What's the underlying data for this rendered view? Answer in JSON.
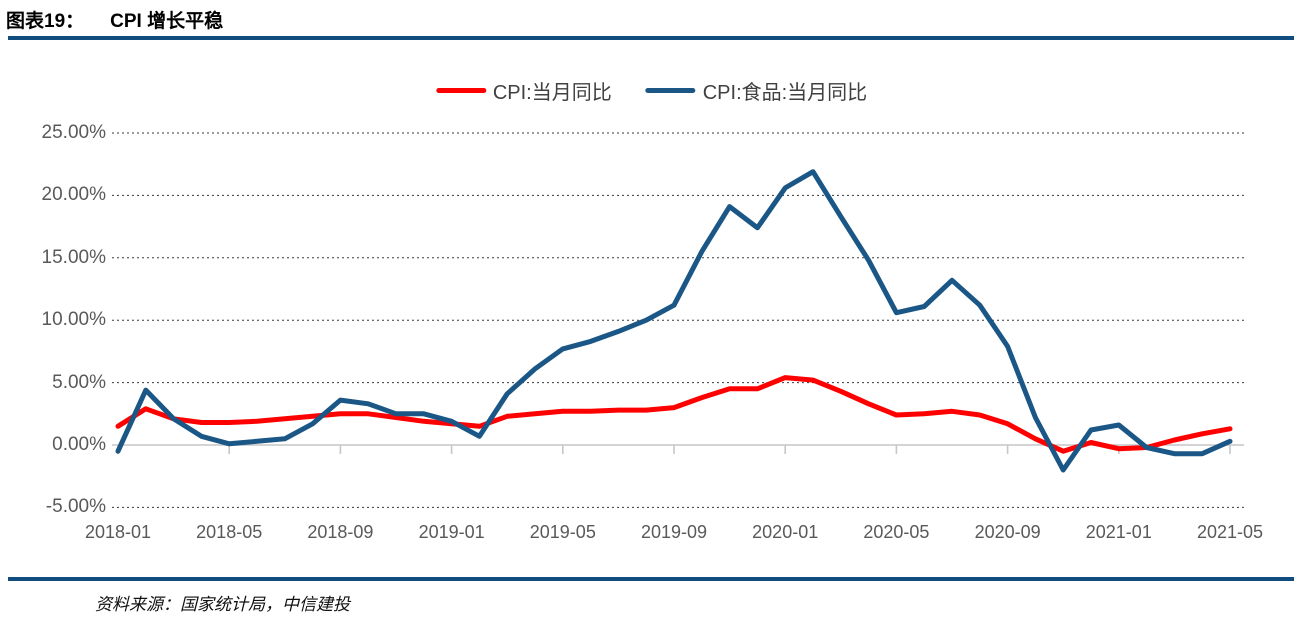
{
  "header": {
    "label": "图表19：",
    "title": "CPI 增长平稳"
  },
  "footer": {
    "source": "资料来源：国家统计局，中信建投"
  },
  "colors": {
    "rule_navy": "#114C7E",
    "cpi_red": "#FF0000",
    "food_blue": "#1B5786",
    "axis_gray": "#C6C6C6",
    "label_gray": "#595959",
    "grid_dark": "#3A3A3A"
  },
  "chart_data": {
    "type": "line",
    "title": "CPI 增长平稳",
    "x": [
      "2018-01",
      "2018-02",
      "2018-03",
      "2018-04",
      "2018-05",
      "2018-06",
      "2018-07",
      "2018-08",
      "2018-09",
      "2018-10",
      "2018-11",
      "2018-12",
      "2019-01",
      "2019-02",
      "2019-03",
      "2019-04",
      "2019-05",
      "2019-06",
      "2019-07",
      "2019-08",
      "2019-09",
      "2019-10",
      "2019-11",
      "2019-12",
      "2020-01",
      "2020-02",
      "2020-03",
      "2020-04",
      "2020-05",
      "2020-06",
      "2020-07",
      "2020-08",
      "2020-09",
      "2020-10",
      "2020-11",
      "2020-12",
      "2021-01",
      "2021-02",
      "2021-03",
      "2021-04",
      "2021-05"
    ],
    "series": [
      {
        "name": "CPI:当月同比",
        "color": "#FF0000",
        "values": [
          1.5,
          2.9,
          2.1,
          1.8,
          1.8,
          1.9,
          2.1,
          2.3,
          2.5,
          2.5,
          2.2,
          1.9,
          1.7,
          1.5,
          2.3,
          2.5,
          2.7,
          2.7,
          2.8,
          2.8,
          3.0,
          3.8,
          4.5,
          4.5,
          5.4,
          5.2,
          4.3,
          3.3,
          2.4,
          2.5,
          2.7,
          2.4,
          1.7,
          0.5,
          -0.5,
          0.2,
          -0.3,
          -0.2,
          0.4,
          0.9,
          1.3
        ]
      },
      {
        "name": "CPI:食品:当月同比",
        "color": "#1B5786",
        "values": [
          -0.5,
          4.4,
          2.1,
          0.7,
          0.1,
          0.3,
          0.5,
          1.7,
          3.6,
          3.3,
          2.5,
          2.5,
          1.9,
          0.7,
          4.1,
          6.1,
          7.7,
          8.3,
          9.1,
          10.0,
          11.2,
          15.5,
          19.1,
          17.4,
          20.6,
          21.9,
          18.3,
          14.8,
          10.6,
          11.1,
          13.2,
          11.2,
          7.9,
          2.2,
          -2.0,
          1.2,
          1.6,
          -0.2,
          -0.7,
          -0.7,
          0.3
        ]
      }
    ],
    "ylim": [
      -5,
      25
    ],
    "ytick_values": [
      25,
      20,
      15,
      10,
      5,
      0,
      -5
    ],
    "ytick_labels": [
      "25.00%",
      "20.00%",
      "15.00%",
      "10.00%",
      "5.00%",
      "0.00%",
      "-5.00%"
    ],
    "xtick_labels": [
      "2018-01",
      "2018-05",
      "2018-09",
      "2019-01",
      "2019-05",
      "2019-09",
      "2020-01",
      "2020-05",
      "2020-09",
      "2021-01",
      "2021-05"
    ],
    "grid": "horizontal dashed",
    "legend_position": "top-center",
    "unit": "percent"
  }
}
